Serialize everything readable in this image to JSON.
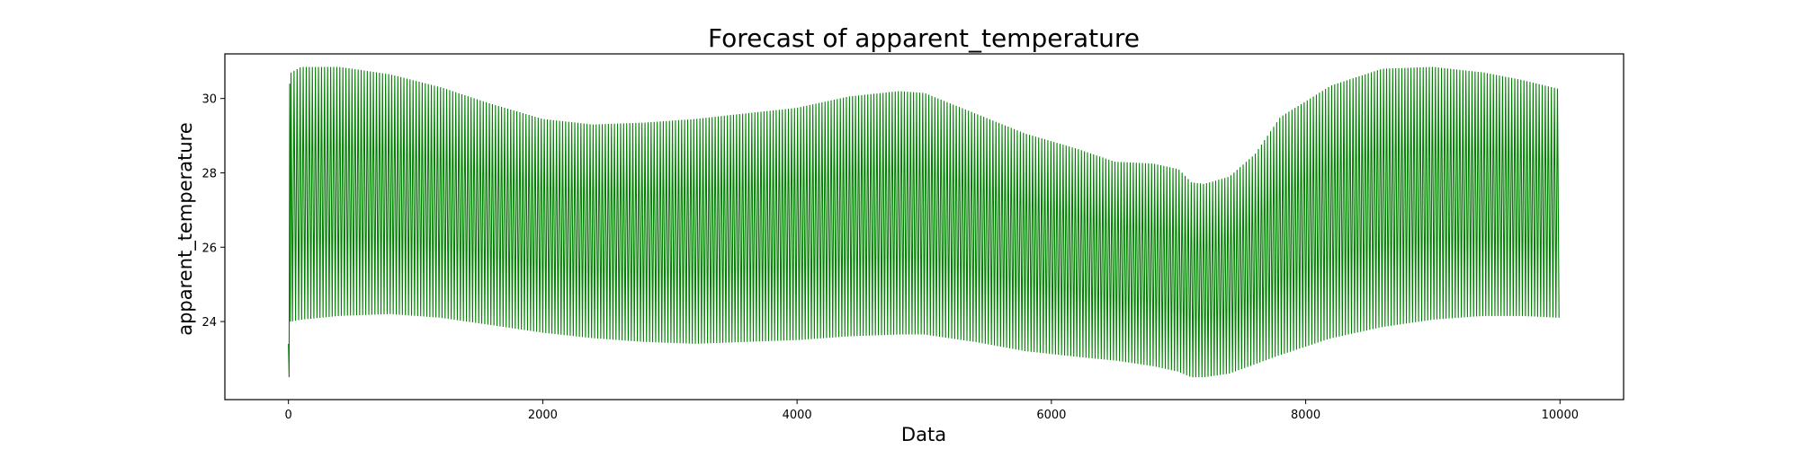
{
  "chart_data": {
    "type": "line",
    "title": "Forecast of apparent_temperature",
    "xlabel": "Data",
    "ylabel": "apparent_temperature",
    "xlim": [
      -500,
      10500
    ],
    "ylim": [
      21.9,
      31.2
    ],
    "xticks": [
      0,
      2000,
      4000,
      6000,
      8000,
      10000
    ],
    "yticks": [
      24,
      26,
      28,
      30
    ],
    "grid": false,
    "legend": "none",
    "color": "#008000",
    "oscillation_period": 24,
    "start": {
      "x": [
        0,
        5,
        10,
        15
      ],
      "y": [
        23.4,
        22.5,
        30.4,
        24.0
      ]
    },
    "upper_envelope": {
      "x": [
        20,
        100,
        400,
        800,
        1200,
        1600,
        2000,
        2400,
        2800,
        3200,
        3600,
        4000,
        4400,
        4800,
        5000,
        5400,
        5800,
        6200,
        6500,
        6800,
        7000,
        7100,
        7200,
        7400,
        7600,
        7800,
        8200,
        8600,
        9000,
        9400,
        9700,
        10000
      ],
      "y": [
        30.7,
        30.85,
        30.85,
        30.65,
        30.3,
        29.85,
        29.45,
        29.3,
        29.35,
        29.45,
        29.6,
        29.75,
        30.05,
        30.2,
        30.15,
        29.6,
        29.05,
        28.65,
        28.3,
        28.25,
        28.1,
        27.75,
        27.7,
        27.9,
        28.5,
        29.5,
        30.35,
        30.8,
        30.85,
        30.7,
        30.5,
        30.25
      ]
    },
    "lower_envelope": {
      "x": [
        20,
        100,
        400,
        800,
        1200,
        1600,
        2000,
        2400,
        2800,
        3200,
        3600,
        4000,
        4400,
        4800,
        5000,
        5400,
        5800,
        6200,
        6500,
        6800,
        7000,
        7100,
        7200,
        7400,
        7600,
        7800,
        8200,
        8600,
        9000,
        9400,
        9700,
        10000
      ],
      "y": [
        24.0,
        24.05,
        24.15,
        24.2,
        24.1,
        23.9,
        23.7,
        23.55,
        23.45,
        23.4,
        23.45,
        23.5,
        23.6,
        23.65,
        23.65,
        23.45,
        23.2,
        23.05,
        22.95,
        22.8,
        22.65,
        22.5,
        22.5,
        22.6,
        22.85,
        23.1,
        23.55,
        23.85,
        24.05,
        24.15,
        24.15,
        24.1
      ]
    }
  }
}
